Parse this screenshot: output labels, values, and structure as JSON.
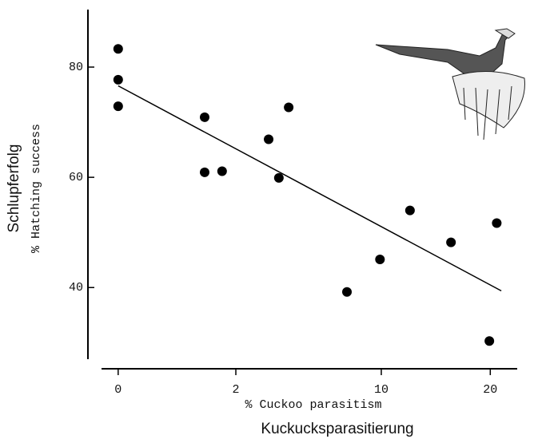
{
  "chart_data": {
    "type": "scatter",
    "x_label": "% Cuckoo parasitism",
    "x_label_2": "Kuckucksparasitierung",
    "y_label": "Schlupferfolg",
    "y_label_2": "% Hatching success",
    "x_scale": "sqrt",
    "xlim": [
      -0.04,
      23
    ],
    "xticks": [
      0,
      2,
      10,
      20
    ],
    "ylim": [
      27,
      90
    ],
    "yticks": [
      40,
      60,
      80
    ],
    "color": "#000000",
    "x": [
      0,
      0,
      0,
      1.08,
      1.08,
      1.56,
      3.27,
      3.73,
      4.2,
      7.56,
      9.9,
      12.3,
      16.0,
      19.9,
      20.7
    ],
    "y": [
      83.3,
      77.7,
      72.9,
      70.9,
      60.9,
      61.1,
      66.9,
      59.9,
      72.7,
      39.2,
      45.1,
      54.0,
      48.2,
      30.3,
      51.7
    ],
    "trend_line": {
      "x": [
        0,
        21.2
      ],
      "y": [
        76.6,
        39.4
      ]
    }
  }
}
